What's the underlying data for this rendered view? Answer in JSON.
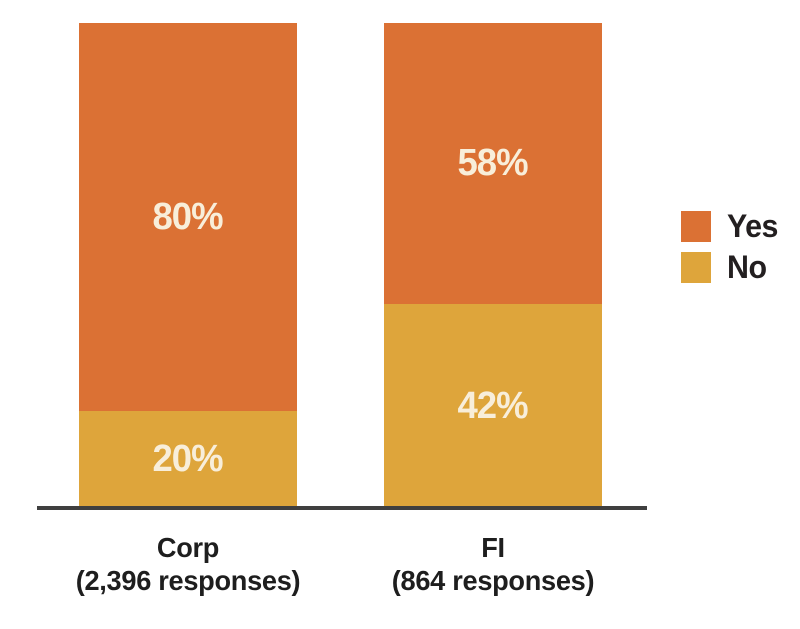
{
  "chart_data": {
    "type": "bar",
    "stacked": true,
    "orientation": "vertical",
    "categories": [
      "Corp",
      "FI"
    ],
    "category_sublabels": [
      "(2,396 responses)",
      "(864 responses)"
    ],
    "series": [
      {
        "name": "Yes",
        "color": "#DB7134",
        "values": [
          80,
          58
        ],
        "labels": [
          "80%",
          "58%"
        ]
      },
      {
        "name": "No",
        "color": "#DEA53B",
        "values": [
          20,
          42
        ],
        "labels": [
          "20%",
          "42%"
        ]
      }
    ],
    "ylim": [
      0,
      100
    ],
    "grid": false,
    "legend_position": "right",
    "value_label_color": "#F8EEDA",
    "axis_line_color": "#3F3F3F",
    "category_label_color": "#1E1E1E"
  },
  "legend": {
    "text_color": "#231F20",
    "items": [
      {
        "label": "Yes",
        "color": "#DB7134"
      },
      {
        "label": "No",
        "color": "#DEA53B"
      }
    ]
  }
}
